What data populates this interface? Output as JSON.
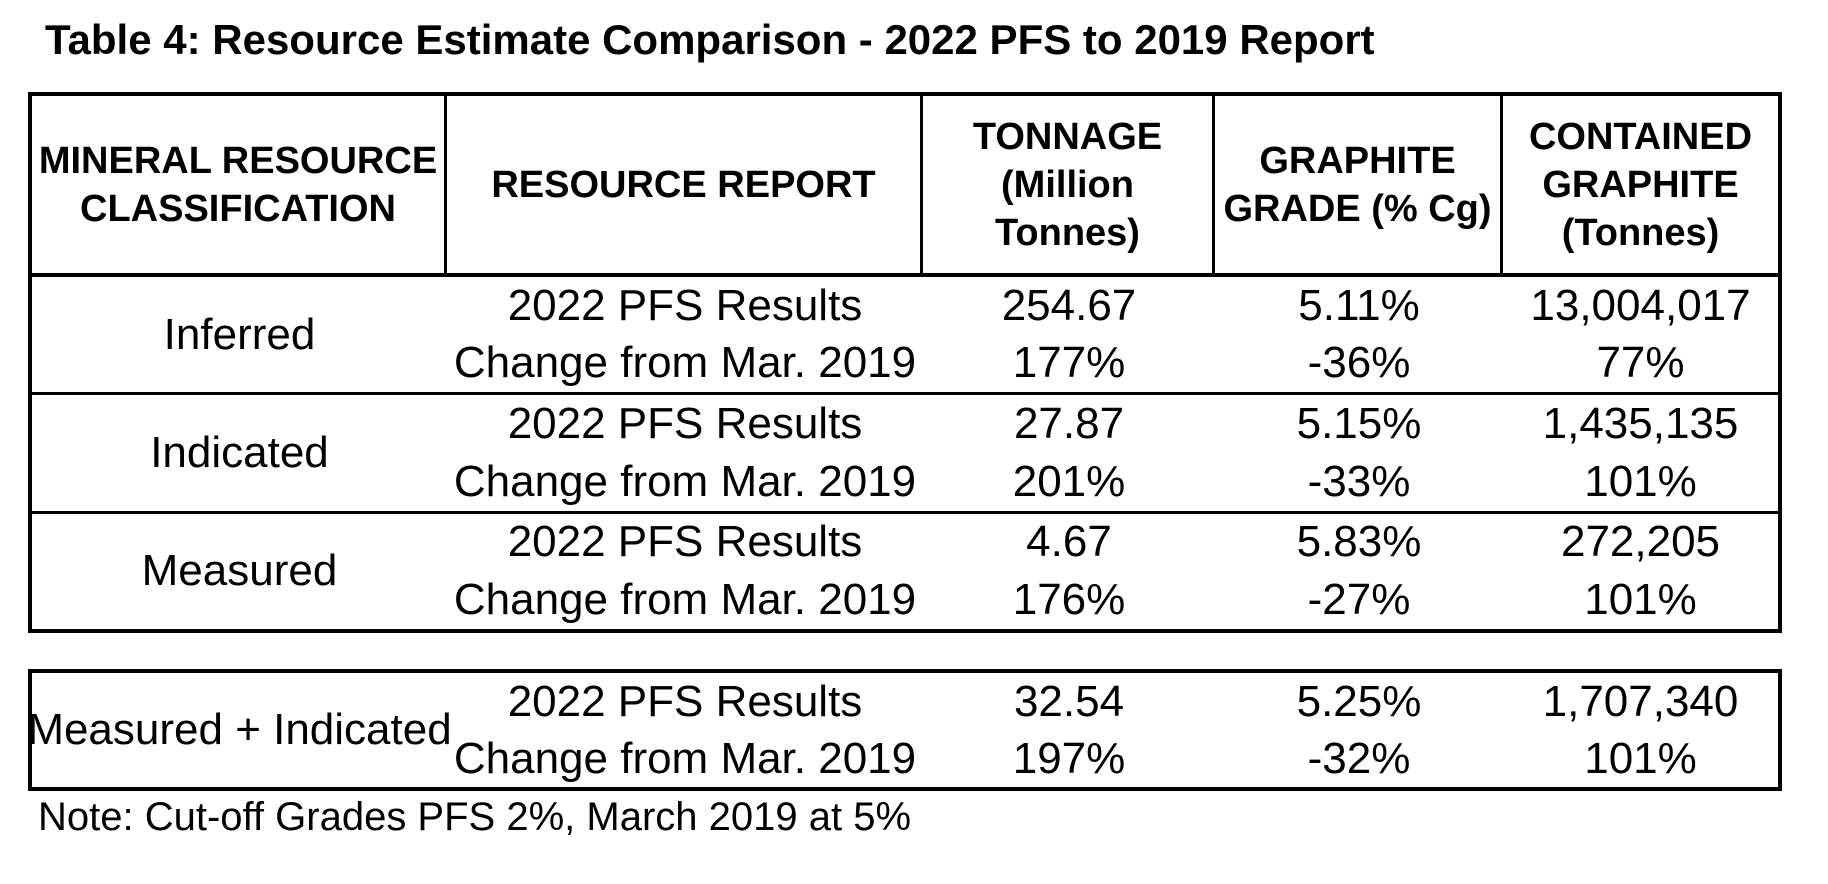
{
  "title": "Table 4: Resource Estimate Comparison - 2022 PFS to 2019 Report",
  "note": "Note: Cut-off Grades PFS 2%, March 2019 at 5%",
  "colors": {
    "border": "#000000",
    "text": "#000000",
    "background": "#ffffff"
  },
  "table": {
    "headers": [
      {
        "label": "MINERAL RESOURCE CLASSIFICATION",
        "lines": [
          "MINERAL RESOURCE",
          "CLASSIFICATION"
        ]
      },
      {
        "label": "RESOURCE REPORT",
        "lines": [
          "RESOURCE REPORT"
        ]
      },
      {
        "label": "TONNAGE (Million Tonnes)",
        "lines": [
          "TONNAGE",
          "(Million",
          "Tonnes)"
        ]
      },
      {
        "label": "GRAPHITE GRADE (% Cg)",
        "lines": [
          "GRAPHITE",
          "GRADE (% Cg)"
        ]
      },
      {
        "label": "CONTAINED GRAPHITE (Tonnes)",
        "lines": [
          "CONTAINED",
          "GRAPHITE",
          "(Tonnes)"
        ]
      }
    ],
    "groups": [
      {
        "classification": "Inferred",
        "rows": [
          {
            "report": "2022 PFS Results",
            "tonnage": "254.67",
            "grade": "5.11%",
            "contained": "13,004,017"
          },
          {
            "report": "Change from Mar. 2019",
            "tonnage": "177%",
            "grade": "-36%",
            "contained": "77%"
          }
        ]
      },
      {
        "classification": "Indicated",
        "rows": [
          {
            "report": "2022 PFS Results",
            "tonnage": "27.87",
            "grade": "5.15%",
            "contained": "1,435,135"
          },
          {
            "report": "Change from Mar. 2019",
            "tonnage": "201%",
            "grade": "-33%",
            "contained": "101%"
          }
        ]
      },
      {
        "classification": "Measured",
        "rows": [
          {
            "report": "2022 PFS Results",
            "tonnage": "4.67",
            "grade": "5.83%",
            "contained": "272,205"
          },
          {
            "report": "Change from Mar. 2019",
            "tonnage": "176%",
            "grade": "-27%",
            "contained": "101%"
          }
        ]
      }
    ],
    "summary": {
      "classification": "Measured + Indicated",
      "rows": [
        {
          "report": "2022 PFS Results",
          "tonnage": "32.54",
          "grade": "5.25%",
          "contained": "1,707,340"
        },
        {
          "report": "Change from Mar. 2019",
          "tonnage": "197%",
          "grade": "-32%",
          "contained": "101%"
        }
      ]
    }
  }
}
